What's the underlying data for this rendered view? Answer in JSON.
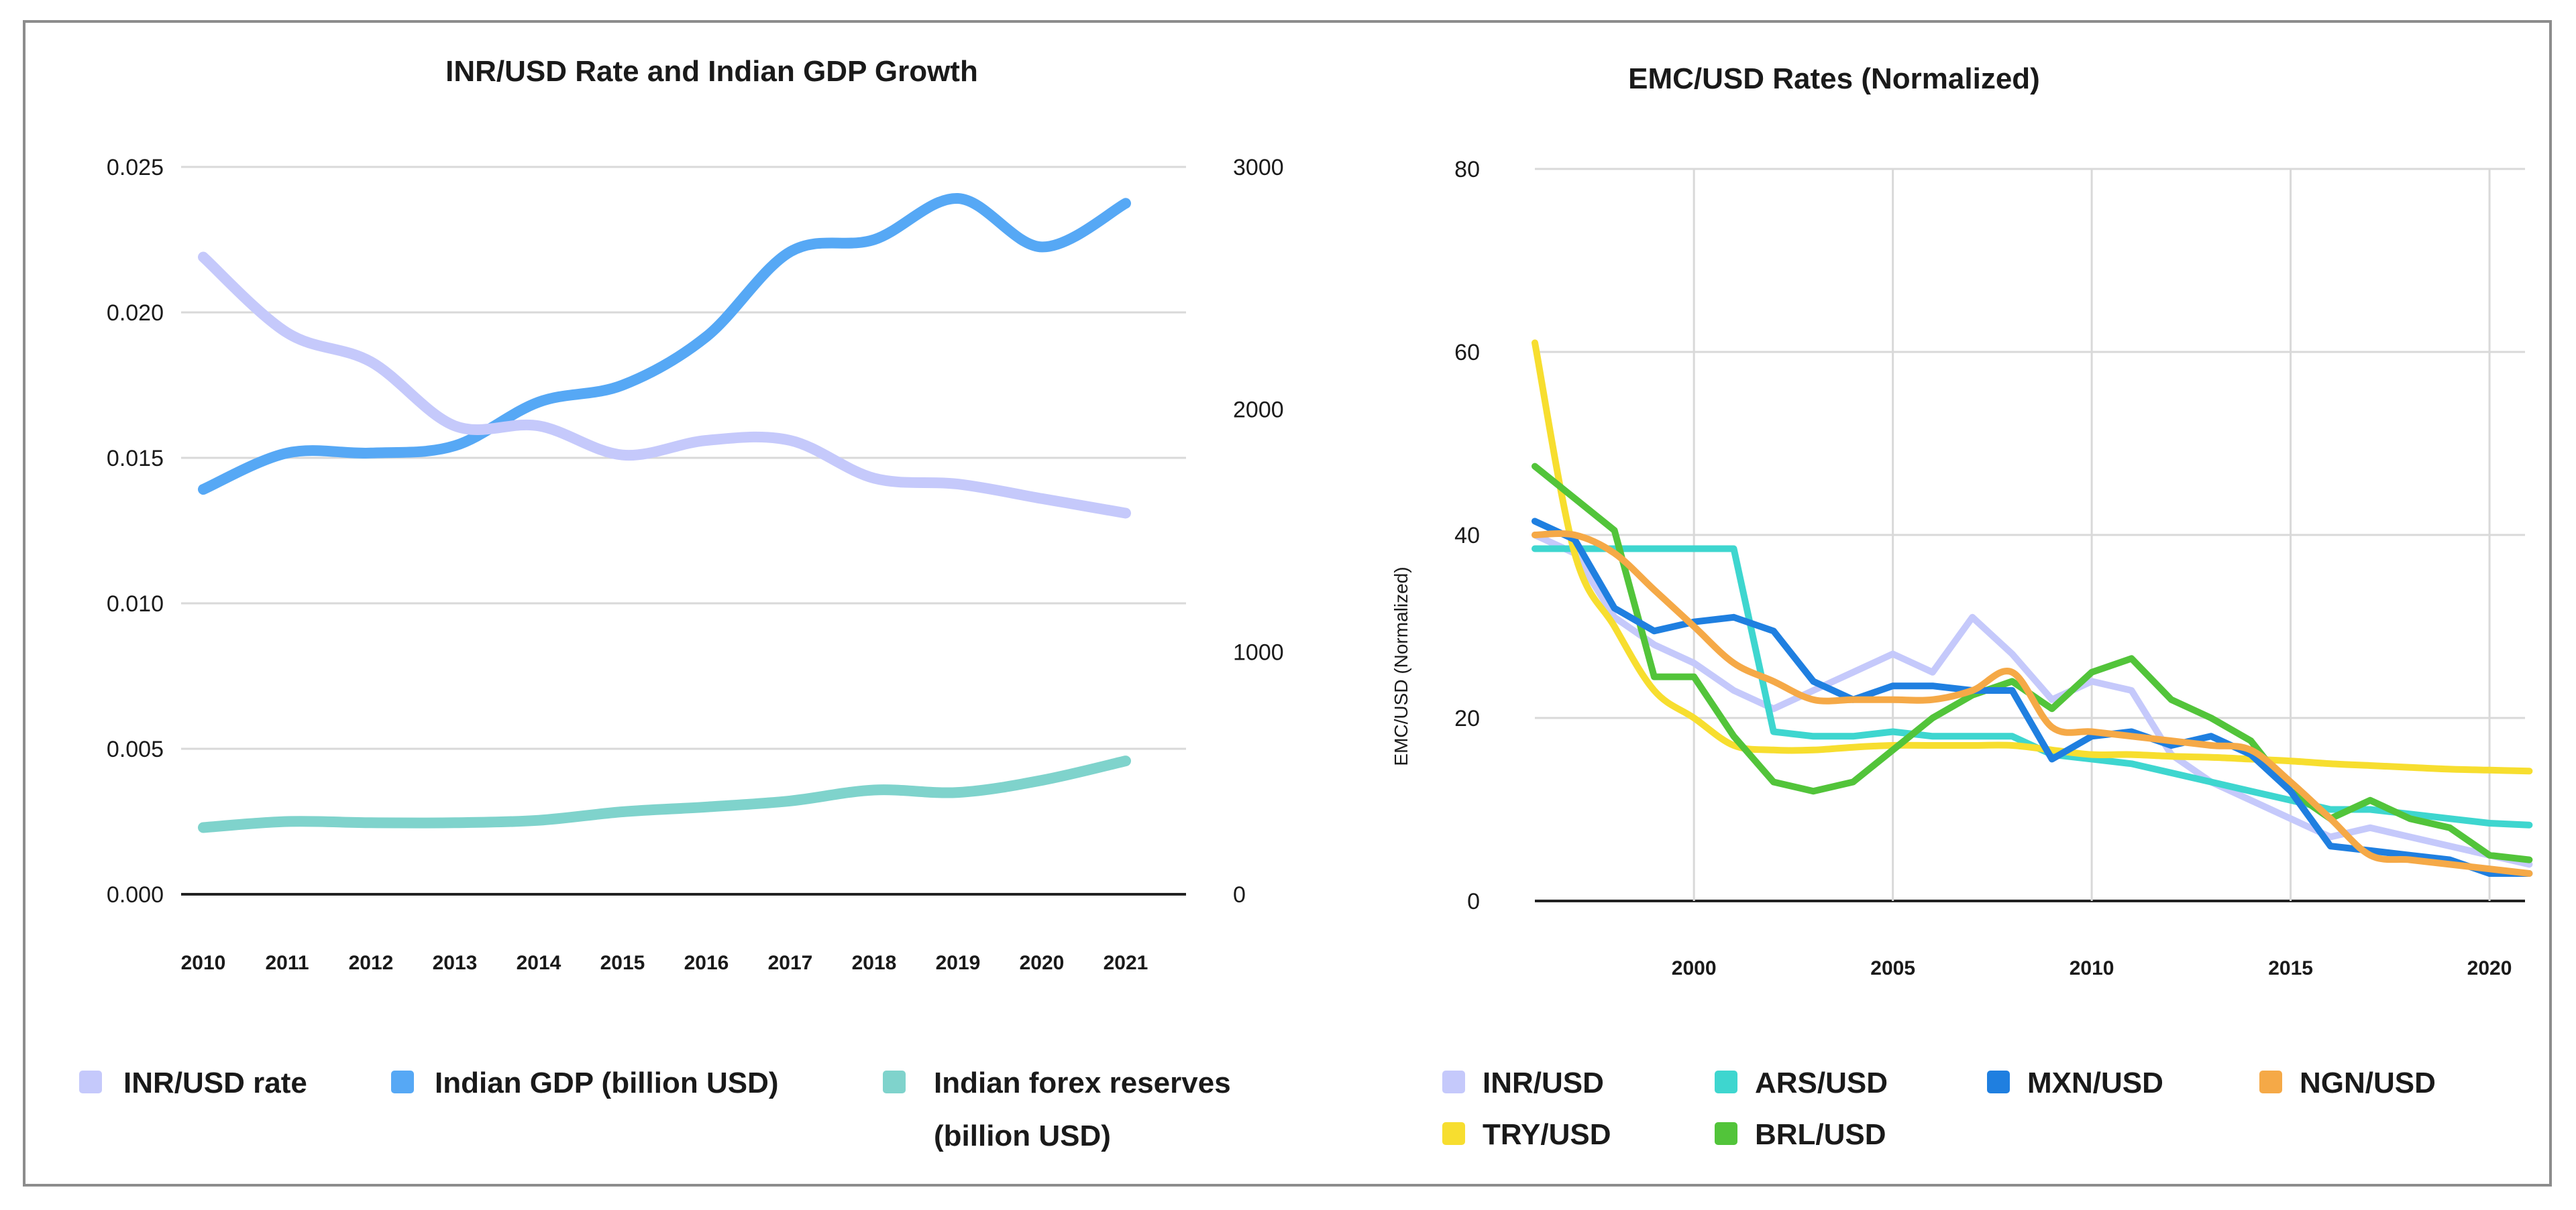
{
  "chart_data": [
    {
      "type": "line",
      "title": "INR/USD Rate and Indian GDP Growth",
      "xlabel": "",
      "ylabel": "",
      "categories": [
        "2010",
        "2011",
        "2012",
        "2013",
        "2014",
        "2015",
        "2016",
        "2017",
        "2018",
        "2019",
        "2020",
        "2021"
      ],
      "y_left": {
        "ylim": [
          0,
          0.025
        ],
        "ticks": [
          "0.000",
          "0.005",
          "0.010",
          "0.015",
          "0.020",
          "0.025"
        ]
      },
      "y_right": {
        "ylim": [
          0,
          3000
        ],
        "ticks": [
          "0",
          "1000",
          "2000",
          "3000"
        ]
      },
      "series": [
        {
          "name": "INR/USD rate",
          "axis": "left",
          "color": "#c5c9fb",
          "values": [
            0.0219,
            0.0193,
            0.0183,
            0.0161,
            0.0161,
            0.0151,
            0.0156,
            0.0156,
            0.0143,
            0.0141,
            0.0136,
            0.0131
          ]
        },
        {
          "name": "Indian GDP (billion USD)",
          "axis": "right",
          "color": "#56a8f5",
          "values": [
            1670,
            1820,
            1820,
            1850,
            2030,
            2100,
            2300,
            2650,
            2700,
            2870,
            2670,
            2850
          ]
        },
        {
          "name": "Indian forex reserves",
          "name_line2": "(billion USD)",
          "axis": "right",
          "color": "#7fd3cc",
          "values": [
            275,
            300,
            295,
            295,
            305,
            340,
            360,
            385,
            430,
            420,
            470,
            550
          ]
        }
      ]
    },
    {
      "type": "line",
      "title": "EMC/USD Rates (Normalized)",
      "xlabel": "",
      "ylabel": "EMC/USD (Normalized)",
      "xlim": [
        1996,
        2021.5
      ],
      "x_ticks": [
        2000,
        2005,
        2010,
        2015,
        2020
      ],
      "ylim": [
        0,
        80
      ],
      "y_ticks": [
        0,
        20,
        40,
        60,
        80
      ],
      "series": [
        {
          "name": "INR/USD",
          "color": "#c5c9fb",
          "x": [
            1996,
            1997,
            1998,
            1999,
            2000,
            2001,
            2002,
            2003,
            2004,
            2005,
            2006,
            2007,
            2008,
            2009,
            2010,
            2011,
            2012,
            2013,
            2014,
            2015,
            2016,
            2017,
            2018,
            2019,
            2020,
            2021
          ],
          "y": [
            40,
            38,
            31,
            28,
            26,
            23,
            21,
            23,
            25,
            27,
            25,
            31,
            27,
            22,
            24,
            23,
            16,
            13,
            11,
            9,
            7,
            8,
            7,
            6,
            5,
            4
          ]
        },
        {
          "name": "ARS/USD",
          "color": "#3ed6cf",
          "x": [
            1996,
            1997,
            1998,
            1999,
            2000,
            2001,
            2002,
            2003,
            2004,
            2005,
            2006,
            2007,
            2008,
            2009,
            2010,
            2011,
            2012,
            2013,
            2014,
            2015,
            2016,
            2017,
            2018,
            2019,
            2020,
            2021
          ],
          "y": [
            38.5,
            38.5,
            38.5,
            38.5,
            38.5,
            38.5,
            18.5,
            18,
            18,
            18.5,
            18,
            18,
            18,
            16,
            15.5,
            15,
            14,
            13,
            12,
            11,
            10,
            10,
            9.5,
            9,
            8.5,
            8.3
          ]
        },
        {
          "name": "MXN/USD",
          "color": "#1f7fe0",
          "x": [
            1996,
            1997,
            1998,
            1999,
            2000,
            2001,
            2002,
            2003,
            2004,
            2005,
            2006,
            2007,
            2008,
            2009,
            2010,
            2011,
            2012,
            2013,
            2014,
            2015,
            2016,
            2017,
            2018,
            2019,
            2020,
            2021
          ],
          "y": [
            41.5,
            39.5,
            32,
            29.5,
            30.5,
            31,
            29.5,
            24,
            22,
            23.5,
            23.5,
            23,
            23,
            15.5,
            18,
            18.5,
            17,
            18,
            16,
            12,
            6,
            5.5,
            5,
            4.5,
            3,
            3
          ]
        },
        {
          "name": "NGN/USD",
          "color": "#f5a947",
          "x": [
            1996,
            1997,
            1998,
            1999,
            2000,
            2001,
            2002,
            2003,
            2004,
            2005,
            2006,
            2007,
            2008,
            2009,
            2010,
            2011,
            2012,
            2013,
            2014,
            2015,
            2016,
            2017,
            2018,
            2019,
            2020,
            2021
          ],
          "y": [
            40,
            40,
            38,
            34,
            30,
            26,
            24,
            22,
            22,
            22,
            22,
            23,
            25,
            19,
            18.5,
            18,
            17.5,
            17,
            16.5,
            13,
            9,
            5,
            4.5,
            4,
            3.5,
            3
          ]
        },
        {
          "name": "TRY/USD",
          "color": "#f7de2f",
          "x": [
            1996,
            1997,
            1998,
            1999,
            2000,
            2001,
            2002,
            2003,
            2004,
            2005,
            2006,
            2007,
            2008,
            2009,
            2010,
            2011,
            2012,
            2013,
            2014,
            2015,
            2016,
            2017,
            2018,
            2019,
            2020,
            2021
          ],
          "y": [
            61,
            38,
            30,
            23,
            20,
            17,
            16.5,
            16.5,
            16.8,
            17,
            17,
            17,
            17,
            16.5,
            16,
            16,
            15.8,
            15.7,
            15.5,
            15.3,
            15,
            14.8,
            14.6,
            14.4,
            14.3,
            14.2
          ]
        },
        {
          "name": "BRL/USD",
          "color": "#52c43a",
          "x": [
            1996,
            1997,
            1998,
            1999,
            2000,
            2001,
            2002,
            2003,
            2004,
            2005,
            2006,
            2007,
            2008,
            2009,
            2010,
            2011,
            2012,
            2013,
            2014,
            2015,
            2016,
            2017,
            2018,
            2019,
            2020,
            2021
          ],
          "y": [
            47.5,
            44,
            40.5,
            24.5,
            24.5,
            18,
            13,
            12,
            13,
            16.5,
            20,
            22.5,
            24,
            21,
            25,
            26.5,
            22,
            20,
            17.5,
            12,
            9,
            11,
            9,
            8,
            5,
            4.5
          ]
        }
      ]
    }
  ],
  "legend_left": [
    "INR/USD rate",
    "Indian GDP (billion USD)",
    "Indian forex reserves",
    "(billion USD)"
  ],
  "legend_right": [
    "INR/USD",
    "ARS/USD",
    "MXN/USD",
    "NGN/USD",
    "TRY/USD",
    "BRL/USD"
  ]
}
